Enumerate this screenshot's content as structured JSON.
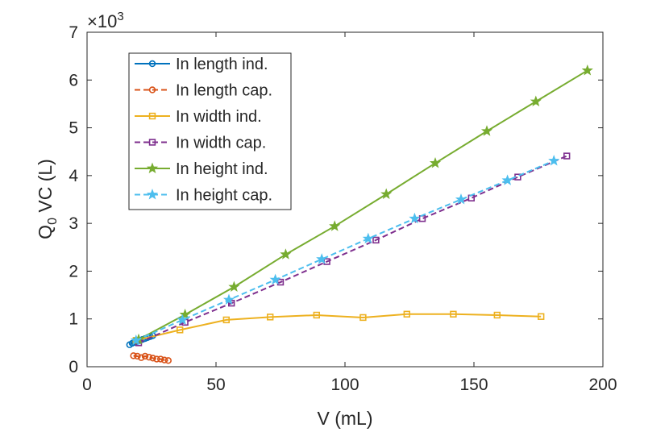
{
  "chart_data": {
    "type": "line",
    "title": "",
    "xlabel": "V (mL)",
    "ylabel_main": "Q",
    "ylabel_sub": "0",
    "ylabel_rest": " VC (L)",
    "exponent_base": "×10",
    "exponent_power": "3",
    "xlim": [
      0,
      200
    ],
    "ylim": [
      0,
      7
    ],
    "xticks": [
      0,
      50,
      100,
      150,
      200
    ],
    "yticks": [
      0,
      1,
      2,
      3,
      4,
      5,
      6,
      7
    ],
    "legend_position": "top-left",
    "series": [
      {
        "name": "In length ind.",
        "color": "#0072BD",
        "dash": "solid",
        "marker": "circle",
        "x": [
          16.5,
          17.5,
          18.5,
          19.5,
          20.5,
          21.5,
          22.5,
          23.5,
          24.5,
          25.5
        ],
        "y": [
          0.46,
          0.49,
          0.51,
          0.53,
          0.55,
          0.57,
          0.59,
          0.61,
          0.63,
          0.65
        ]
      },
      {
        "name": "In length cap.",
        "color": "#D95319",
        "dash": "dashed",
        "marker": "circle",
        "x": [
          18,
          19.5,
          21,
          22.5,
          24,
          25.5,
          27,
          28.5,
          30,
          31.5
        ],
        "y": [
          0.23,
          0.22,
          0.19,
          0.22,
          0.2,
          0.18,
          0.16,
          0.16,
          0.14,
          0.13
        ]
      },
      {
        "name": "In width ind.",
        "color": "#EDB120",
        "dash": "solid",
        "marker": "square",
        "x": [
          19,
          36,
          54,
          71,
          89,
          107,
          124,
          142,
          159,
          176
        ],
        "y": [
          0.55,
          0.77,
          0.98,
          1.04,
          1.08,
          1.03,
          1.1,
          1.1,
          1.08,
          1.05
        ]
      },
      {
        "name": "In width cap.",
        "color": "#7E2F8E",
        "dash": "dashed",
        "marker": "square",
        "x": [
          20,
          38,
          56,
          75,
          93,
          112,
          130,
          149,
          167,
          186
        ],
        "y": [
          0.5,
          0.93,
          1.33,
          1.77,
          2.2,
          2.65,
          3.1,
          3.53,
          3.97,
          4.41
        ]
      },
      {
        "name": "In height ind.",
        "color": "#77AC30",
        "dash": "solid",
        "marker": "star",
        "x": [
          20,
          38,
          57,
          77,
          96,
          116,
          135,
          155,
          174,
          194
        ],
        "y": [
          0.57,
          1.09,
          1.67,
          2.35,
          2.94,
          3.61,
          4.26,
          4.93,
          5.55,
          6.2
        ]
      },
      {
        "name": "In height cap.",
        "color": "#4DBEEE",
        "dash": "dashed",
        "marker": "star",
        "x": [
          19,
          37,
          55,
          73,
          91,
          109,
          127,
          145,
          163,
          181
        ],
        "y": [
          0.55,
          0.98,
          1.4,
          1.82,
          2.25,
          2.68,
          3.1,
          3.5,
          3.9,
          4.31
        ]
      }
    ]
  }
}
